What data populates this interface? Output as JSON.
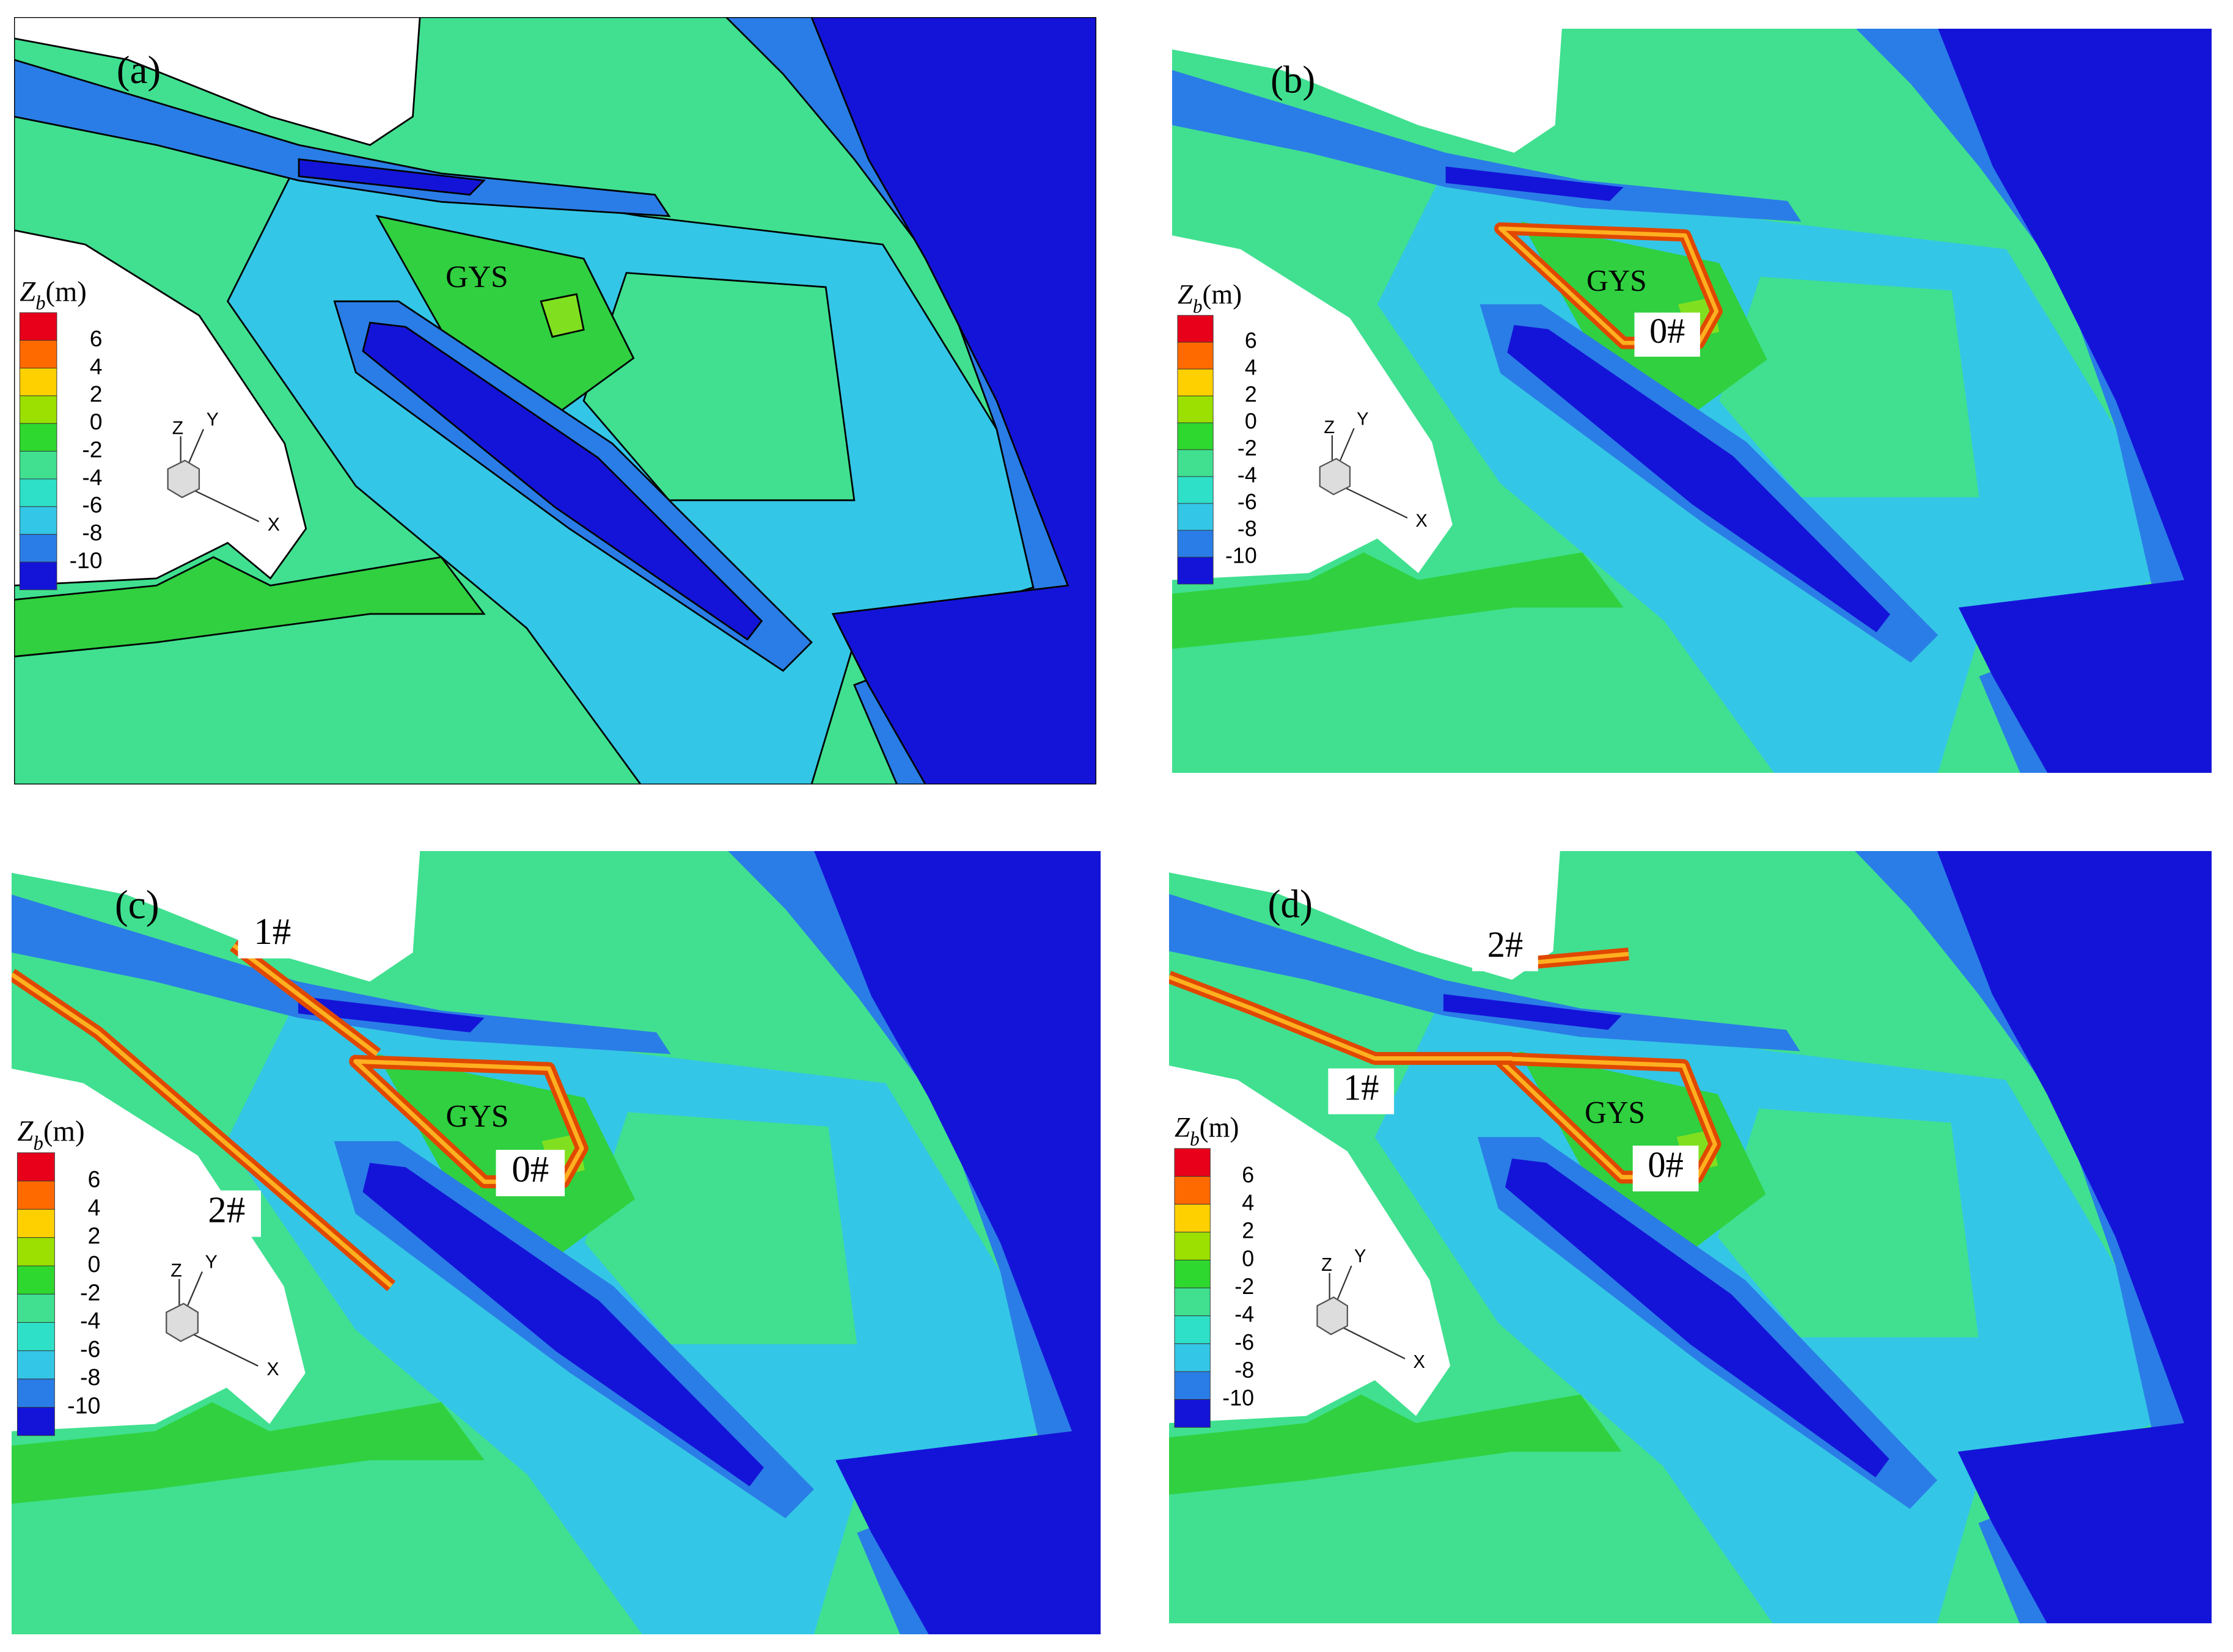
{
  "panels": [
    {
      "label": "(a)",
      "island": "GYS",
      "structures": []
    },
    {
      "label": "(b)",
      "island": "GYS",
      "structures": [
        "0#"
      ]
    },
    {
      "label": "(c)",
      "island": "GYS",
      "structures": [
        "0#",
        "1#",
        "2#"
      ]
    },
    {
      "label": "(d)",
      "island": "GYS",
      "structures": [
        "0#",
        "1#",
        "2#"
      ]
    }
  ],
  "legend": {
    "symbol": "Z",
    "subscript": "b",
    "unit": "(m)",
    "ticks": [
      6,
      4,
      2,
      0,
      -2,
      -4,
      -6,
      -8,
      -10
    ]
  },
  "axes": {
    "x": "X",
    "y": "Y",
    "z": "Z"
  }
}
